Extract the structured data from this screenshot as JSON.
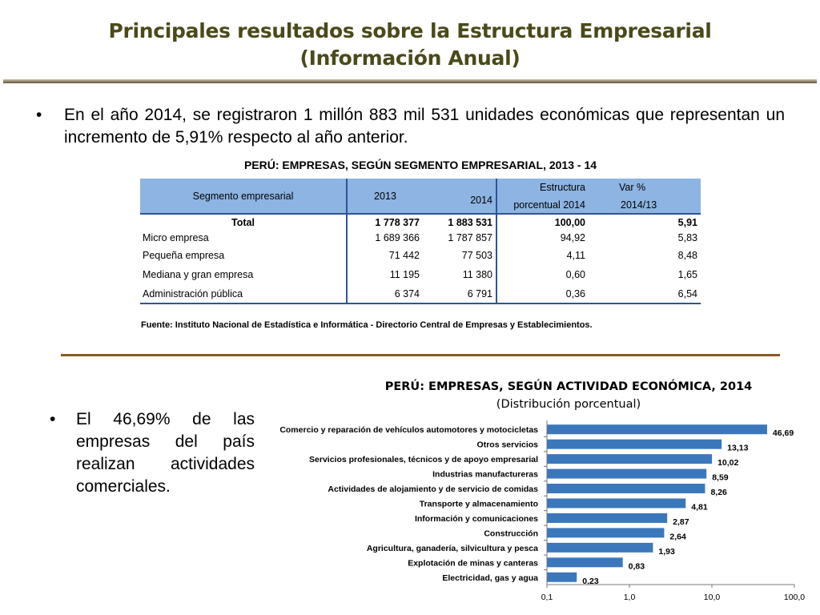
{
  "header": {
    "title_line1": "Principales resultados sobre la Estructura Empresarial",
    "title_line2": "(Información Anual)"
  },
  "bullet1": {
    "marker": "•",
    "text": "En el año 2014, se registraron 1 millón 883 mil 531 unidades económicas que representan un incremento de 5,91% respecto al año anterior."
  },
  "table": {
    "title": "PERÚ: EMPRESAS, SEGÚN SEGMENTO EMPRESARIAL, 2013 - 14",
    "headers": {
      "segment": "Segmento empresarial",
      "y2013": "2013",
      "y2014": "2014",
      "estructura_1": "Estructura",
      "estructura_2": "porcentual 2014",
      "var_1": "Var %",
      "var_2": "2014/13"
    },
    "total": {
      "label": "Total",
      "y2013": "1 778 377",
      "y2014": "1 883 531",
      "estructura": "100,00",
      "var": "5,91"
    },
    "rows": [
      {
        "label": "Micro empresa",
        "y2013": "1 689 366",
        "y2014": "1 787 857",
        "estructura": "94,92",
        "var": "5,83"
      },
      {
        "label": "Pequeña empresa",
        "y2013": "71 442",
        "y2014": "77 503",
        "estructura": "4,11",
        "var": "8,48"
      },
      {
        "label": "Mediana y  gran empresa",
        "y2013": "11 195",
        "y2014": "11 380",
        "estructura": "0,60",
        "var": "1,65"
      },
      {
        "label": "Administración pública",
        "y2013": "6 374",
        "y2014": "6 791",
        "estructura": "0,36",
        "var": "6,54"
      }
    ],
    "source": "Fuente: Instituto Nacional de Estadística e Informática - Directorio Central de Empresas y Establecimientos."
  },
  "bullet2": {
    "marker": "•",
    "text": "El 46,69% de las empresas del país realizan actividades comerciales."
  },
  "chart_data": {
    "type": "bar",
    "orientation": "horizontal",
    "title": "PERÚ: EMPRESAS, SEGÚN ACTIVIDAD ECONÓMICA, 2014",
    "subtitle": "(Distribución porcentual)",
    "xscale": "log",
    "xlim": [
      0.1,
      100
    ],
    "xticks": [
      0.1,
      1,
      10,
      100
    ],
    "xtick_labels": [
      "0,1",
      "1,0",
      "10,0",
      "100,0"
    ],
    "categories": [
      "Comercio y reparación de vehículos automotores y motocicletas",
      "Otros servicios",
      "Servicios profesionales, técnicos y de apoyo empresarial",
      "Industrias manufactureras",
      "Actividades de alojamiento y de servicio de comidas",
      "Transporte y almacenamiento",
      "Información y comunicaciones",
      "Construcción",
      "Agricultura, ganadería, silvicultura y pesca",
      "Explotación de minas y canteras",
      "Electricidad, gas y agua"
    ],
    "values": [
      46.69,
      13.13,
      10.02,
      8.59,
      8.26,
      4.81,
      2.87,
      2.64,
      1.93,
      0.83,
      0.23
    ],
    "value_labels": [
      "46,69",
      "13,13",
      "10,02",
      "8,59",
      "8,26",
      "4,81",
      "2,87",
      "2,64",
      "1,93",
      "0,83",
      "0,23"
    ],
    "bar_color": "#3b77bb",
    "grid": false,
    "legend": "none"
  }
}
